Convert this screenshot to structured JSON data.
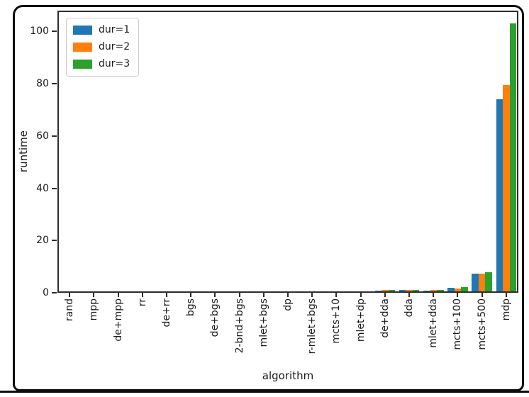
{
  "chart_data": {
    "type": "bar",
    "title": "",
    "xlabel": "algorithm",
    "ylabel": "runtime",
    "ylim": [
      0,
      108
    ],
    "yticks": [
      0,
      20,
      40,
      60,
      80,
      100
    ],
    "grid": false,
    "legend_position": "upper left",
    "categories": [
      "rand",
      "mpp",
      "de+mpp",
      "rr",
      "de+rr",
      "bgs",
      "de+bgs",
      "2-bnd+bgs",
      "mlet+bgs",
      "dp",
      "r-mlet+bgs",
      "mcts+10",
      "mlet+dp",
      "de+dda",
      "dda",
      "mlet+dda",
      "mcts+100",
      "mcts+500",
      "mdp"
    ],
    "series": [
      {
        "name": "dur=1",
        "color": "#1f77b4",
        "values": [
          0,
          0,
          0,
          0,
          0,
          0,
          0,
          0,
          0,
          0,
          0,
          0,
          0,
          0.4,
          0.5,
          0.4,
          1.3,
          6.8,
          73.5
        ]
      },
      {
        "name": "dur=2",
        "color": "#ff7f0e",
        "values": [
          0,
          0,
          0,
          0,
          0,
          0,
          0,
          0,
          0,
          0,
          0,
          0,
          0,
          0.5,
          0.5,
          0.5,
          1.1,
          6.8,
          79
        ]
      },
      {
        "name": "dur=3",
        "color": "#2ca02c",
        "values": [
          0,
          0,
          0,
          0,
          0,
          0,
          0,
          0,
          0,
          0,
          0,
          0,
          0,
          0.5,
          0.5,
          0.5,
          1.5,
          7.2,
          102.5
        ]
      }
    ]
  }
}
